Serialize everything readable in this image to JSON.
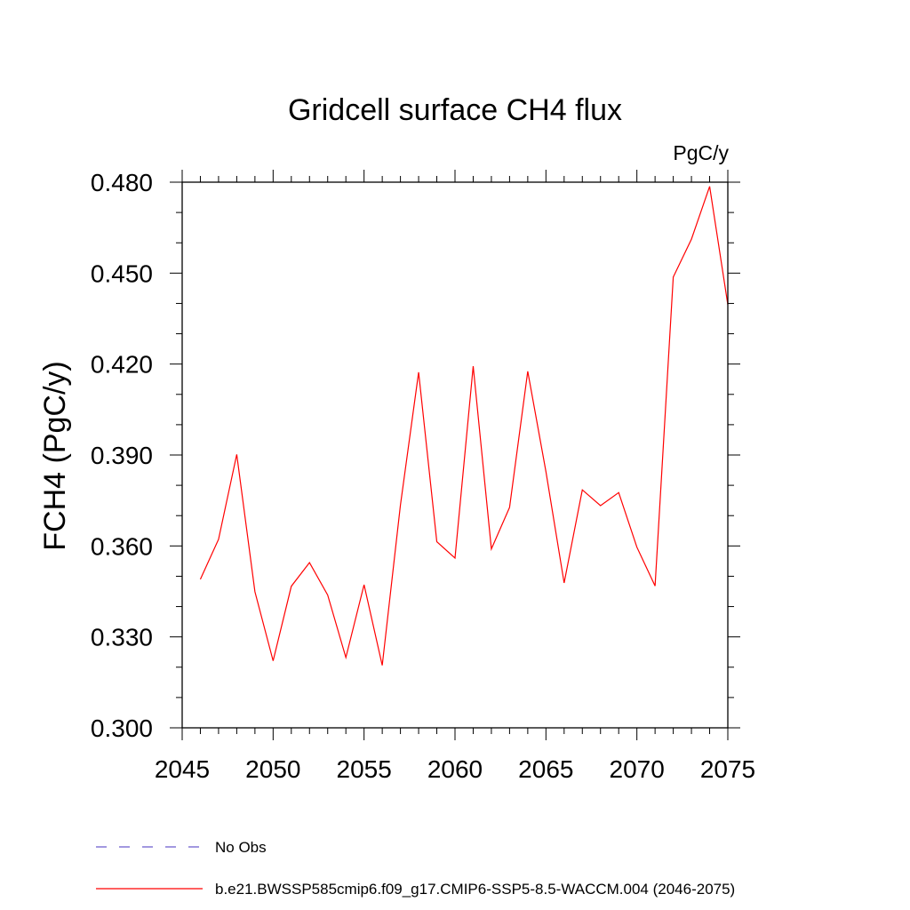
{
  "chart_data": {
    "type": "line",
    "title": "Gridcell surface CH4 flux",
    "units_label": "PgC/y",
    "ylabel": "FCH4  (PgC/y)",
    "xlabel": "",
    "xlim": [
      2045,
      2075
    ],
    "ylim": [
      0.3,
      0.48
    ],
    "x_ticks": [
      "2045",
      "2050",
      "2055",
      "2060",
      "2065",
      "2070",
      "2075"
    ],
    "y_ticks": [
      "0.300",
      "0.330",
      "0.360",
      "0.390",
      "0.420",
      "0.450",
      "0.480"
    ],
    "grid": false,
    "legend_position": "bottom-left",
    "series": [
      {
        "name": "b.e21.BWSSP585cmip6.f09_g17.CMIP6-SSP5-8.5-WACCM.004 (2046-2075)",
        "color": "#ff0000",
        "style": "solid",
        "x": [
          2046,
          2047,
          2048,
          2049,
          2050,
          2051,
          2052,
          2053,
          2054,
          2055,
          2056,
          2057,
          2058,
          2059,
          2060,
          2061,
          2062,
          2063,
          2064,
          2065,
          2066,
          2067,
          2068,
          2069,
          2070,
          2071,
          2072,
          2073,
          2074,
          2075
        ],
        "values": [
          0.349,
          0.3622,
          0.3902,
          0.3449,
          0.3221,
          0.3467,
          0.3545,
          0.3438,
          0.3232,
          0.3472,
          0.3206,
          0.3735,
          0.4173,
          0.3614,
          0.356,
          0.4193,
          0.359,
          0.3727,
          0.4176,
          0.3845,
          0.3478,
          0.3785,
          0.3733,
          0.3776,
          0.3596,
          0.3468,
          0.4487,
          0.4612,
          0.4786,
          0.4396
        ]
      },
      {
        "name": "No Obs",
        "color": "#6a5acd",
        "style": "dashed",
        "x": [],
        "values": []
      }
    ]
  }
}
